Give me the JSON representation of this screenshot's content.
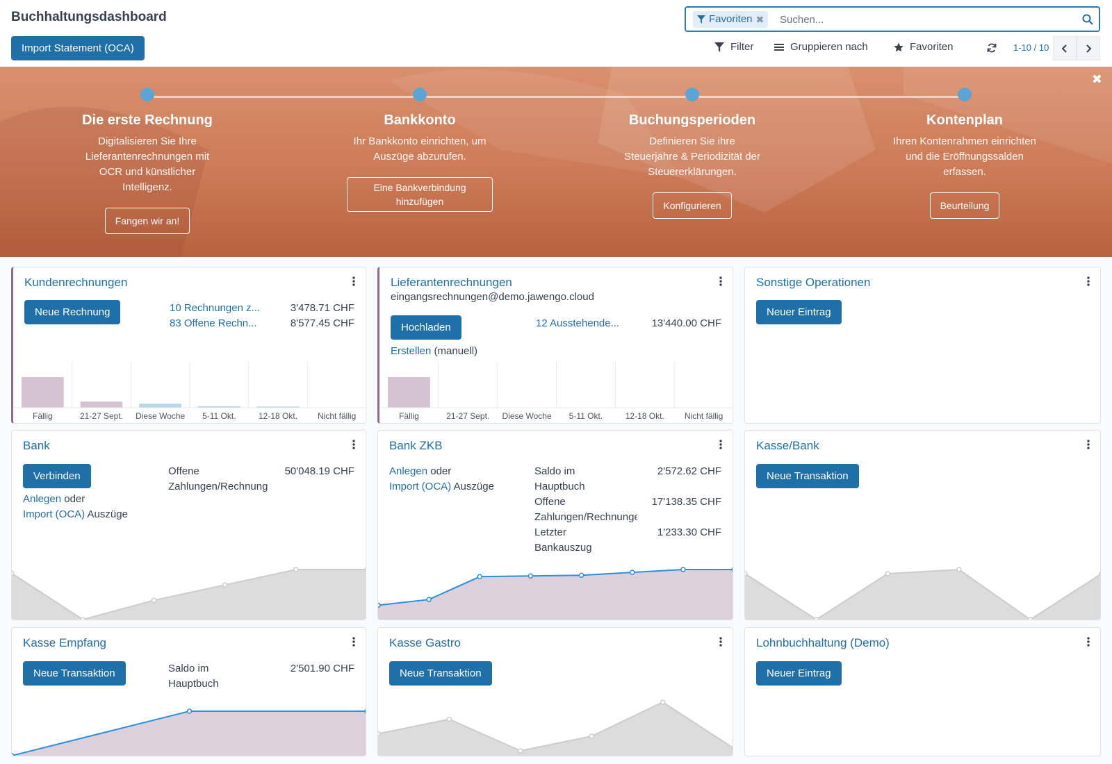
{
  "header": {
    "title": "Buchhaltungsdashboard",
    "import_button": "Import Statement (OCA)",
    "search": {
      "facet_label": "Favoriten",
      "placeholder": "Suchen..."
    },
    "toolbar": {
      "filter": "Filter",
      "group_by": "Gruppieren nach",
      "favorites": "Favoriten"
    },
    "pager": "1-10 / 10"
  },
  "onboarding": {
    "steps": [
      {
        "title": "Die erste Rechnung",
        "description": "Digitalisieren Sie Ihre Lieferantenrechnungen mit OCR und künstlicher Intelligenz.",
        "button": "Fangen wir an!"
      },
      {
        "title": "Bankkonto",
        "description": "Ihr Bankkonto einrichten, um Auszüge abzurufen.",
        "button": "Eine Bankverbindung hinzufügen"
      },
      {
        "title": "Buchungsperioden",
        "description": "Definieren Sie ihre Steuerjahre & Periodizität der Steuererklärungen.",
        "button": "Konfigurieren"
      },
      {
        "title": "Kontenplan",
        "description": "Ihren Kontenrahmen einrichten und die Eröffnungssalden erfassen.",
        "button": "Beurteilung"
      }
    ]
  },
  "journals": {
    "customer_invoices": {
      "title": "Kundenrechnungen",
      "button": "Neue Rechnung",
      "stats": [
        {
          "label": "10 Rechnungen z...",
          "value": "3'478.71 CHF"
        },
        {
          "label": "83 Offene Rechn...",
          "value": "8'577.45 CHF"
        }
      ],
      "chart_data": {
        "type": "bar",
        "categories": [
          "Fällig",
          "21-27 Sept.",
          "Diese Woche",
          "5-11 Okt.",
          "12-18 Okt.",
          "Nicht fällig"
        ],
        "values": [
          100,
          20,
          13,
          5,
          4,
          0
        ],
        "colors": [
          "#d5c3d3",
          "#d5c3d3",
          "#b8d7e9",
          "#b8d7e9",
          "#b8d7e9",
          "#b8d7e9"
        ]
      }
    },
    "vendor_bills": {
      "title": "Lieferantenrechnungen",
      "email": "eingangsrechnungen@demo.jawengo.cloud",
      "button": "Hochladen",
      "stats": [
        {
          "label": "12 Ausstehende...",
          "value": "13'440.00 CHF"
        }
      ],
      "create_link": "Erstellen",
      "create_suffix": "(manuell)",
      "chart_data": {
        "type": "bar",
        "categories": [
          "Fällig",
          "21-27 Sept.",
          "Diese Woche",
          "5-11 Okt.",
          "12-18 Okt.",
          "Nicht fällig"
        ],
        "values": [
          100,
          0,
          0,
          0,
          0,
          0
        ],
        "colors": [
          "#d5c3d3",
          "#d5c3d3",
          "#b8d7e9",
          "#b8d7e9",
          "#b8d7e9",
          "#b8d7e9"
        ]
      }
    },
    "misc": {
      "title": "Sonstige Operationen",
      "button": "Neuer Eintrag"
    },
    "bank": {
      "title": "Bank",
      "button": "Verbinden",
      "create_link": "Anlegen",
      "or_text": "oder",
      "import_link": "Import (OCA)",
      "statements_text": "Auszüge",
      "stats": [
        {
          "label": "Offene Zahlungen/Rechnungen",
          "value": "50'048.19 CHF"
        }
      ],
      "chart_data": {
        "type": "area",
        "values": [
          60,
          0,
          25,
          45,
          65,
          65
        ],
        "color": "#dcdcdc",
        "line": "#cccccc"
      }
    },
    "bank_zkb": {
      "title": "Bank ZKB",
      "create_link": "Anlegen",
      "or_text": "oder",
      "import_link": "Import (OCA)",
      "statements_text": "Auszüge",
      "stats": [
        {
          "label": "Saldo im Hauptbuch",
          "value": "2'572.62 CHF"
        },
        {
          "label": "Offene Zahlungen/Rechnungen",
          "value": "17'138.35 CHF"
        },
        {
          "label": "Letzter Bankauszug",
          "value": "1'233.30 CHF"
        }
      ],
      "chart_data": {
        "type": "area",
        "values": [
          20,
          28,
          60,
          61,
          62,
          66,
          70,
          70
        ],
        "color": "#ddd0dd",
        "line": "#2b8fe0"
      }
    },
    "cash_bank": {
      "title": "Kasse/Bank",
      "button": "Neue Transaktion",
      "chart_data": {
        "type": "area",
        "values": [
          55,
          0,
          55,
          60,
          0,
          55
        ],
        "color": "#dcdcdc",
        "line": "#cccccc"
      }
    },
    "cash_reception": {
      "title": "Kasse Empfang",
      "button": "Neue Transaktion",
      "stats": [
        {
          "label": "Saldo im Hauptbuch",
          "value": "2'501.90 CHF"
        }
      ],
      "chart_data": {
        "type": "area",
        "values": [
          0,
          100,
          100
        ],
        "color": "#ddd0dd",
        "line": "#2b8fe0"
      }
    },
    "cash_gastro": {
      "title": "Kasse Gastro",
      "button": "Neue Transaktion",
      "chart_data": {
        "type": "area",
        "values": [
          45,
          75,
          10,
          40,
          110,
          15
        ],
        "color": "#dcdcdc",
        "line": "#cccccc"
      }
    },
    "payroll": {
      "title": "Lohnbuchhaltung (Demo)",
      "button": "Neuer Eintrag"
    }
  }
}
